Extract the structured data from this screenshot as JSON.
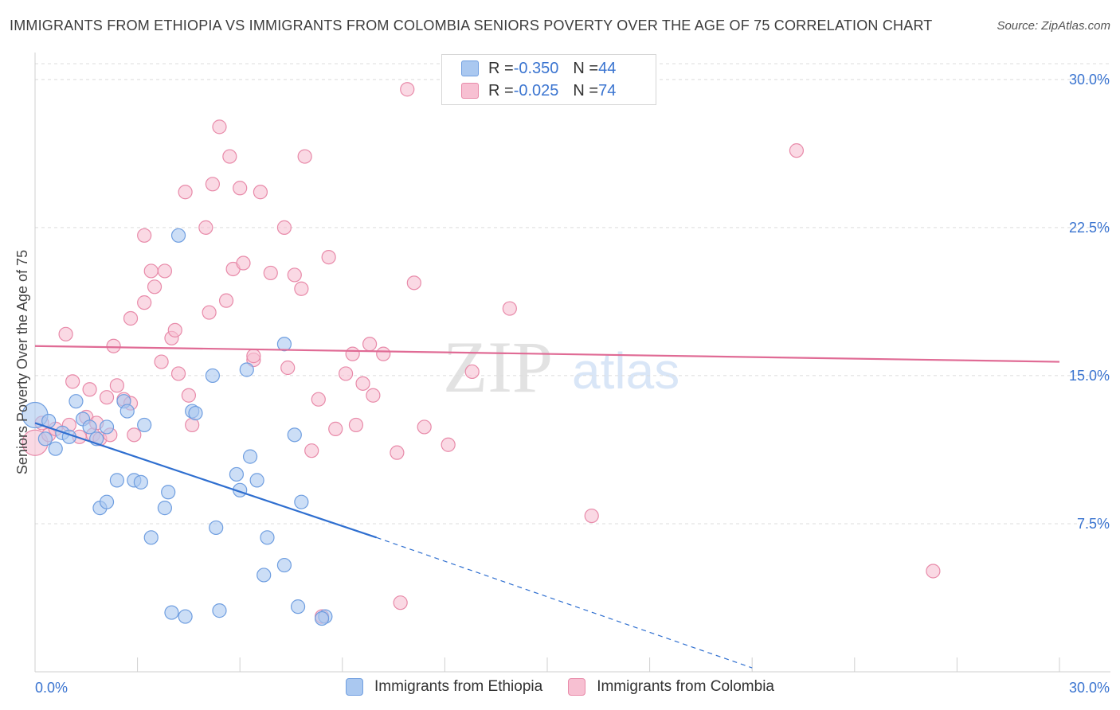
{
  "title": "IMMIGRANTS FROM ETHIOPIA VS IMMIGRANTS FROM COLOMBIA SENIORS POVERTY OVER THE AGE OF 75 CORRELATION CHART",
  "source": "Source: ZipAtlas.com",
  "watermark": {
    "zip": "ZIP",
    "atlas": "atlas"
  },
  "legend": {
    "rows": [
      {
        "r_label": "R = ",
        "r_value": "-0.350",
        "n_label": "N = ",
        "n_value": "44",
        "color": "#aac8f0"
      },
      {
        "r_label": "R = ",
        "r_value": "-0.025",
        "n_label": "N = ",
        "n_value": "74",
        "color": "#f7b6cb"
      }
    ]
  },
  "colors": {
    "ethiopia_fill": "#aac8f0",
    "ethiopia_stroke": "#6f9ee0",
    "ethiopia_line": "#2f6fd0",
    "colombia_fill": "#f7c0d2",
    "colombia_stroke": "#e88aa9",
    "colombia_line": "#e06b95",
    "tick_label": "#3a74d0",
    "grid": "#dcdcdc"
  },
  "chart_data": {
    "type": "scatter",
    "title": "IMMIGRANTS FROM ETHIOPIA VS IMMIGRANTS FROM COLOMBIA SENIORS POVERTY OVER THE AGE OF 75 CORRELATION CHART",
    "xlabel": "",
    "ylabel": "Seniors Poverty Over the Age of 75",
    "xlim": [
      0,
      30
    ],
    "ylim": [
      0,
      30.8
    ],
    "x_tick_labels": [
      "0.0%",
      "30.0%"
    ],
    "y_ticks": [
      7.5,
      15.0,
      22.5,
      30.0
    ],
    "y_tick_labels": [
      "7.5%",
      "15.0%",
      "22.5%",
      "30.0%"
    ],
    "grid": "horizontal dashed",
    "legend_position": "top-center",
    "series": [
      {
        "name": "Immigrants from Ethiopia",
        "R": -0.35,
        "N": 44,
        "trend": {
          "x": [
            0.0,
            10.0
          ],
          "y": [
            12.6,
            6.8
          ],
          "dashed_to": [
            21.0,
            0.2
          ]
        },
        "points": [
          [
            0.0,
            13.0
          ],
          [
            0.3,
            11.8
          ],
          [
            0.4,
            12.7
          ],
          [
            0.6,
            11.3
          ],
          [
            0.8,
            12.1
          ],
          [
            1.0,
            11.9
          ],
          [
            1.2,
            13.7
          ],
          [
            1.4,
            12.8
          ],
          [
            1.6,
            12.4
          ],
          [
            1.8,
            11.8
          ],
          [
            2.1,
            12.4
          ],
          [
            1.9,
            8.3
          ],
          [
            2.1,
            8.6
          ],
          [
            2.4,
            9.7
          ],
          [
            2.6,
            13.7
          ],
          [
            2.7,
            13.2
          ],
          [
            2.9,
            9.7
          ],
          [
            3.1,
            9.6
          ],
          [
            3.2,
            12.5
          ],
          [
            3.4,
            6.8
          ],
          [
            3.8,
            8.3
          ],
          [
            3.9,
            9.1
          ],
          [
            4.0,
            3.0
          ],
          [
            4.2,
            22.1
          ],
          [
            4.4,
            2.8
          ],
          [
            4.6,
            13.2
          ],
          [
            4.7,
            13.1
          ],
          [
            5.2,
            15.0
          ],
          [
            5.3,
            7.3
          ],
          [
            5.4,
            3.1
          ],
          [
            5.9,
            10.0
          ],
          [
            6.0,
            9.2
          ],
          [
            6.2,
            15.3
          ],
          [
            6.3,
            10.9
          ],
          [
            6.5,
            9.7
          ],
          [
            6.8,
            6.8
          ],
          [
            6.7,
            4.9
          ],
          [
            7.3,
            16.6
          ],
          [
            7.3,
            5.4
          ],
          [
            7.6,
            12.0
          ],
          [
            7.7,
            3.3
          ],
          [
            7.8,
            8.6
          ],
          [
            8.5,
            2.8
          ],
          [
            8.4,
            2.7
          ]
        ]
      },
      {
        "name": "Immigrants from Colombia",
        "R": -0.025,
        "N": 74,
        "trend": {
          "x": [
            0.0,
            30.0
          ],
          "y": [
            16.5,
            15.7
          ]
        },
        "points": [
          [
            0.0,
            11.6
          ],
          [
            0.2,
            12.6
          ],
          [
            0.4,
            12.0
          ],
          [
            0.6,
            12.3
          ],
          [
            0.9,
            17.1
          ],
          [
            1.0,
            12.5
          ],
          [
            1.1,
            14.7
          ],
          [
            1.3,
            11.9
          ],
          [
            1.5,
            12.9
          ],
          [
            1.6,
            14.3
          ],
          [
            1.7,
            12.0
          ],
          [
            1.8,
            12.6
          ],
          [
            1.9,
            11.8
          ],
          [
            2.1,
            13.9
          ],
          [
            2.2,
            12.0
          ],
          [
            2.3,
            16.5
          ],
          [
            2.4,
            14.5
          ],
          [
            2.6,
            13.8
          ],
          [
            2.8,
            13.6
          ],
          [
            2.8,
            17.9
          ],
          [
            2.9,
            12.0
          ],
          [
            3.2,
            22.1
          ],
          [
            3.2,
            18.7
          ],
          [
            3.4,
            20.3
          ],
          [
            3.5,
            19.5
          ],
          [
            3.7,
            15.7
          ],
          [
            3.8,
            20.3
          ],
          [
            4.0,
            16.9
          ],
          [
            4.1,
            17.3
          ],
          [
            4.2,
            15.1
          ],
          [
            4.4,
            24.3
          ],
          [
            4.5,
            14.0
          ],
          [
            4.6,
            12.5
          ],
          [
            5.0,
            22.5
          ],
          [
            5.1,
            18.2
          ],
          [
            5.2,
            24.7
          ],
          [
            5.4,
            27.6
          ],
          [
            5.6,
            18.8
          ],
          [
            5.7,
            26.1
          ],
          [
            5.8,
            20.4
          ],
          [
            6.0,
            24.5
          ],
          [
            6.1,
            20.7
          ],
          [
            6.4,
            15.8
          ],
          [
            6.4,
            16.0
          ],
          [
            6.6,
            24.3
          ],
          [
            6.9,
            20.2
          ],
          [
            7.3,
            22.5
          ],
          [
            7.4,
            15.4
          ],
          [
            7.6,
            20.1
          ],
          [
            7.8,
            19.4
          ],
          [
            7.9,
            26.1
          ],
          [
            8.1,
            11.2
          ],
          [
            8.3,
            13.8
          ],
          [
            8.4,
            2.8
          ],
          [
            8.6,
            21.0
          ],
          [
            8.8,
            12.3
          ],
          [
            9.1,
            15.1
          ],
          [
            9.3,
            16.1
          ],
          [
            9.4,
            12.5
          ],
          [
            9.6,
            14.6
          ],
          [
            9.8,
            16.6
          ],
          [
            9.9,
            14.0
          ],
          [
            10.2,
            16.1
          ],
          [
            10.6,
            11.1
          ],
          [
            10.7,
            3.5
          ],
          [
            10.9,
            29.5
          ],
          [
            11.1,
            19.7
          ],
          [
            11.4,
            12.4
          ],
          [
            12.1,
            11.5
          ],
          [
            12.8,
            15.2
          ],
          [
            13.9,
            18.4
          ],
          [
            16.3,
            7.9
          ],
          [
            22.3,
            26.4
          ],
          [
            26.3,
            5.1
          ]
        ]
      }
    ]
  },
  "bottom_legend": {
    "items": [
      {
        "label": "Immigrants from Ethiopia",
        "color": "#aac8f0"
      },
      {
        "label": "Immigrants from Colombia",
        "color": "#f7c0d2"
      }
    ]
  }
}
